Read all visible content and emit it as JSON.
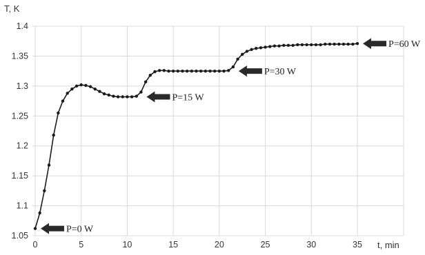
{
  "chart_data": {
    "type": "line",
    "ylabel": "T, K",
    "xlabel": "t, min",
    "xlim": [
      0,
      35
    ],
    "ylim": [
      1.05,
      1.4
    ],
    "grid": true,
    "x_ticks": [
      0,
      5,
      10,
      15,
      20,
      25,
      30,
      35
    ],
    "y_ticks": [
      "1.05",
      "1.1",
      "1.15",
      "1.2",
      "1.25",
      "1.3",
      "1.35",
      "1.4"
    ],
    "series": [
      {
        "x": [
          0,
          0.5,
          1,
          1.5,
          2,
          2.5,
          3,
          3.5,
          4,
          4.5,
          5,
          5.5,
          6,
          6.5,
          7,
          7.5,
          8,
          8.5,
          9,
          9.5,
          10,
          10.5,
          11,
          11.5,
          12,
          12.5,
          13,
          13.5,
          14,
          14.5,
          15,
          15.5,
          16,
          16.5,
          17,
          17.5,
          18,
          18.5,
          19,
          19.5,
          20,
          20.5,
          21,
          21.5,
          22,
          22.5,
          23,
          23.5,
          24,
          24.5,
          25,
          25.5,
          26,
          26.5,
          27,
          27.5,
          28,
          28.5,
          29,
          29.5,
          30,
          30.5,
          31,
          31.5,
          32,
          32.5,
          33,
          33.5,
          34,
          34.5,
          35
        ],
        "y": [
          1.062,
          1.088,
          1.125,
          1.168,
          1.218,
          1.255,
          1.275,
          1.288,
          1.295,
          1.3,
          1.302,
          1.301,
          1.299,
          1.295,
          1.291,
          1.287,
          1.285,
          1.283,
          1.282,
          1.282,
          1.282,
          1.282,
          1.283,
          1.29,
          1.307,
          1.318,
          1.324,
          1.326,
          1.326,
          1.325,
          1.325,
          1.325,
          1.325,
          1.325,
          1.325,
          1.325,
          1.325,
          1.325,
          1.325,
          1.325,
          1.325,
          1.325,
          1.326,
          1.332,
          1.345,
          1.353,
          1.358,
          1.361,
          1.363,
          1.364,
          1.365,
          1.366,
          1.367,
          1.367,
          1.368,
          1.368,
          1.368,
          1.369,
          1.369,
          1.369,
          1.369,
          1.369,
          1.369,
          1.37,
          1.37,
          1.37,
          1.37,
          1.37,
          1.37,
          1.37,
          1.371
        ]
      }
    ],
    "annotations": [
      {
        "text": "P=0 W",
        "x": 0,
        "y": 1.062
      },
      {
        "text": "P=15 W",
        "x": 11.5,
        "y": 1.282
      },
      {
        "text": "P=30 W",
        "x": 21.5,
        "y": 1.325
      },
      {
        "text": "P=60 W",
        "x": 35,
        "y": 1.371
      }
    ]
  }
}
